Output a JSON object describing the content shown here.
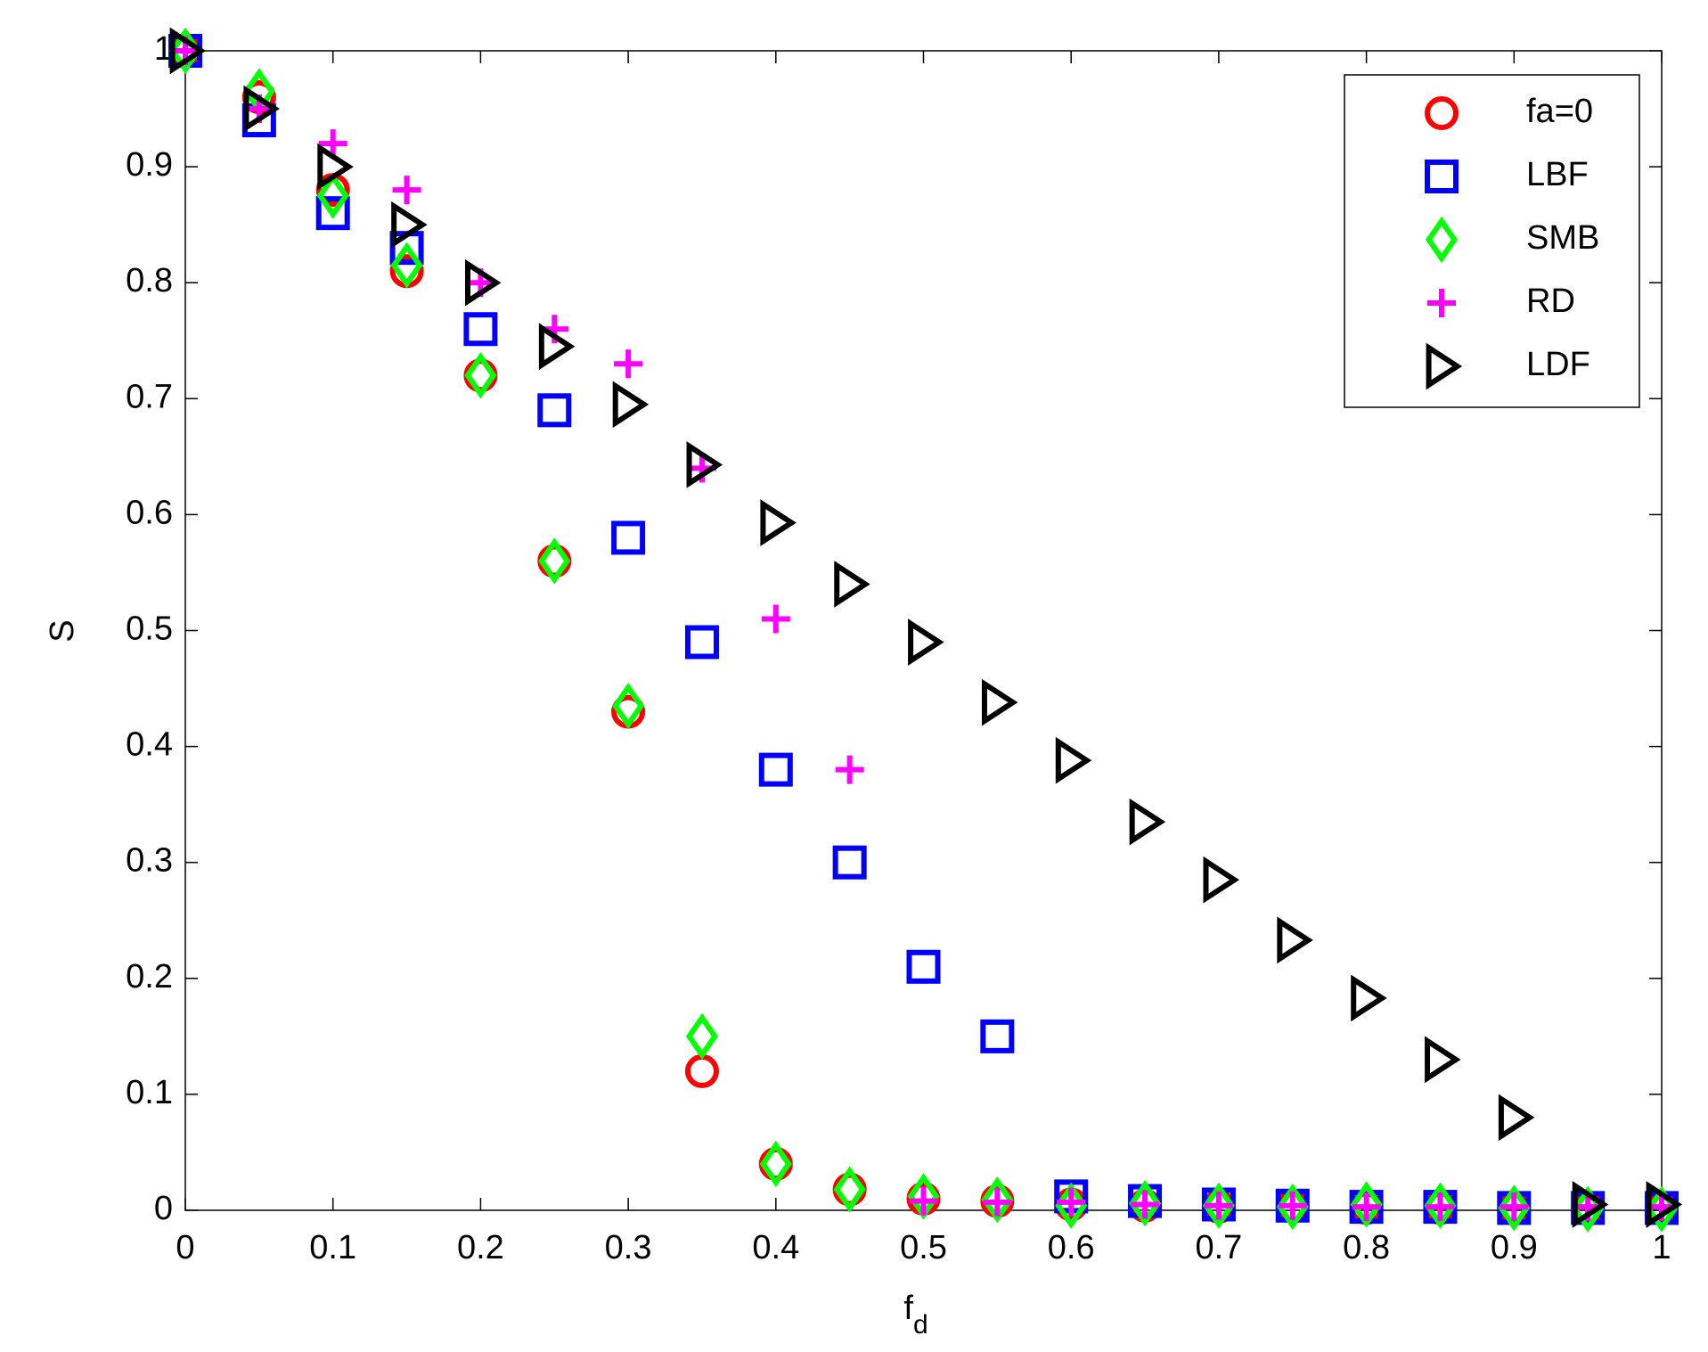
{
  "chart_data": {
    "type": "scatter",
    "xlabel": {
      "text": "f",
      "subscript": "d"
    },
    "ylabel": "S",
    "x": [
      0,
      0.05,
      0.1,
      0.15,
      0.2,
      0.25,
      0.3,
      0.35,
      0.4,
      0.45,
      0.5,
      0.55,
      0.6,
      0.65,
      0.7,
      0.75,
      0.8,
      0.85,
      0.9,
      0.95,
      1
    ],
    "series": [
      {
        "name": "fa=0",
        "color": "#ff0000",
        "marker": "o",
        "values": [
          1,
          0.96,
          0.88,
          0.81,
          0.72,
          0.56,
          0.43,
          0.12,
          0.04,
          0.018,
          0.01,
          0.008,
          0.005,
          0.004,
          0.003,
          0.003,
          0.002,
          0.002,
          0.002,
          0.002,
          0.002
        ]
      },
      {
        "name": "LBF",
        "color": "#0000ff",
        "marker": "s",
        "values": [
          1,
          0.94,
          0.86,
          0.83,
          0.76,
          0.69,
          0.58,
          0.49,
          0.38,
          0.3,
          0.21,
          0.15,
          0.012,
          0.008,
          0.005,
          0.004,
          0.003,
          0.003,
          0.002,
          0.002,
          0.002
        ]
      },
      {
        "name": "SMB",
        "color": "#00ff00",
        "marker": "d",
        "values": [
          1,
          0.965,
          0.875,
          0.815,
          0.72,
          0.56,
          0.435,
          0.15,
          0.04,
          0.018,
          0.012,
          0.009,
          0.004,
          0.006,
          0.004,
          0.003,
          0.005,
          0.004,
          0.002,
          0.001,
          0.001
        ]
      },
      {
        "name": "RD",
        "color": "#ff00ff",
        "marker": "+",
        "values": [
          1,
          0.95,
          0.92,
          0.88,
          0.8,
          0.76,
          0.73,
          0.64,
          0.51,
          0.38,
          0.008,
          0.007,
          0.007,
          0.005,
          0.004,
          0.004,
          0.003,
          0.003,
          0.003,
          0.003,
          0.003
        ]
      },
      {
        "name": "LDF",
        "color": "#000000",
        "marker": ">",
        "values": [
          1,
          0.95,
          0.9,
          0.85,
          0.8,
          0.745,
          0.695,
          0.643,
          0.593,
          0.54,
          0.49,
          0.438,
          0.388,
          0.335,
          0.285,
          0.233,
          0.183,
          0.13,
          0.08,
          0.005,
          0.005
        ]
      }
    ],
    "xlim": [
      0,
      1
    ],
    "ylim": [
      0,
      1
    ],
    "xticks": [
      0,
      0.1,
      0.2,
      0.3,
      0.4,
      0.5,
      0.6,
      0.7,
      0.8,
      0.9,
      1
    ],
    "yticks": [
      0,
      0.1,
      0.2,
      0.3,
      0.4,
      0.5,
      0.6,
      0.7,
      0.8,
      0.9,
      1
    ],
    "grid": false,
    "legend": "upper right"
  }
}
